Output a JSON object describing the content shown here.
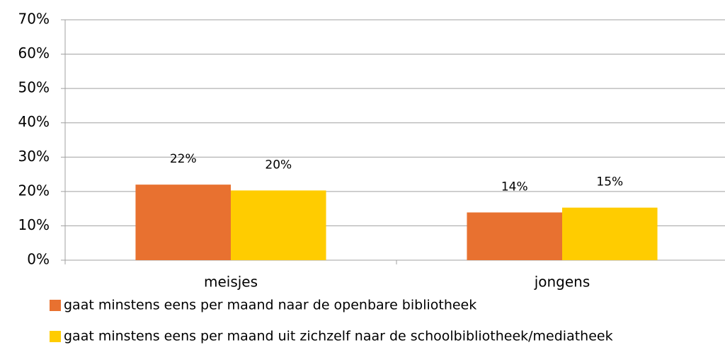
{
  "chart_data": {
    "type": "bar",
    "categories": [
      "meisjes",
      "jongens"
    ],
    "series": [
      {
        "name": "gaat minstens eens per maand naar de openbare bibliotheek",
        "color": "#e87130",
        "values": [
          22,
          13.9
        ],
        "value_labels": [
          "22%",
          "14%"
        ]
      },
      {
        "name": "gaat minstens eens per maand uit zichzelf naar de schoolbibliotheek/mediatheek",
        "color": "#ffcc00",
        "values": [
          20.3,
          15.3
        ],
        "value_labels": [
          "20%",
          "15%"
        ]
      }
    ],
    "ylim": [
      0,
      70
    ],
    "yticks": [
      {
        "value": 0,
        "label": "0%"
      },
      {
        "value": 10,
        "label": "10%"
      },
      {
        "value": 20,
        "label": "20%"
      },
      {
        "value": 30,
        "label": "30%"
      },
      {
        "value": 40,
        "label": "40%"
      },
      {
        "value": 50,
        "label": "50%"
      },
      {
        "value": 60,
        "label": "60%"
      },
      {
        "value": 70,
        "label": "70%"
      }
    ],
    "grid": true,
    "legend": "bottom"
  }
}
